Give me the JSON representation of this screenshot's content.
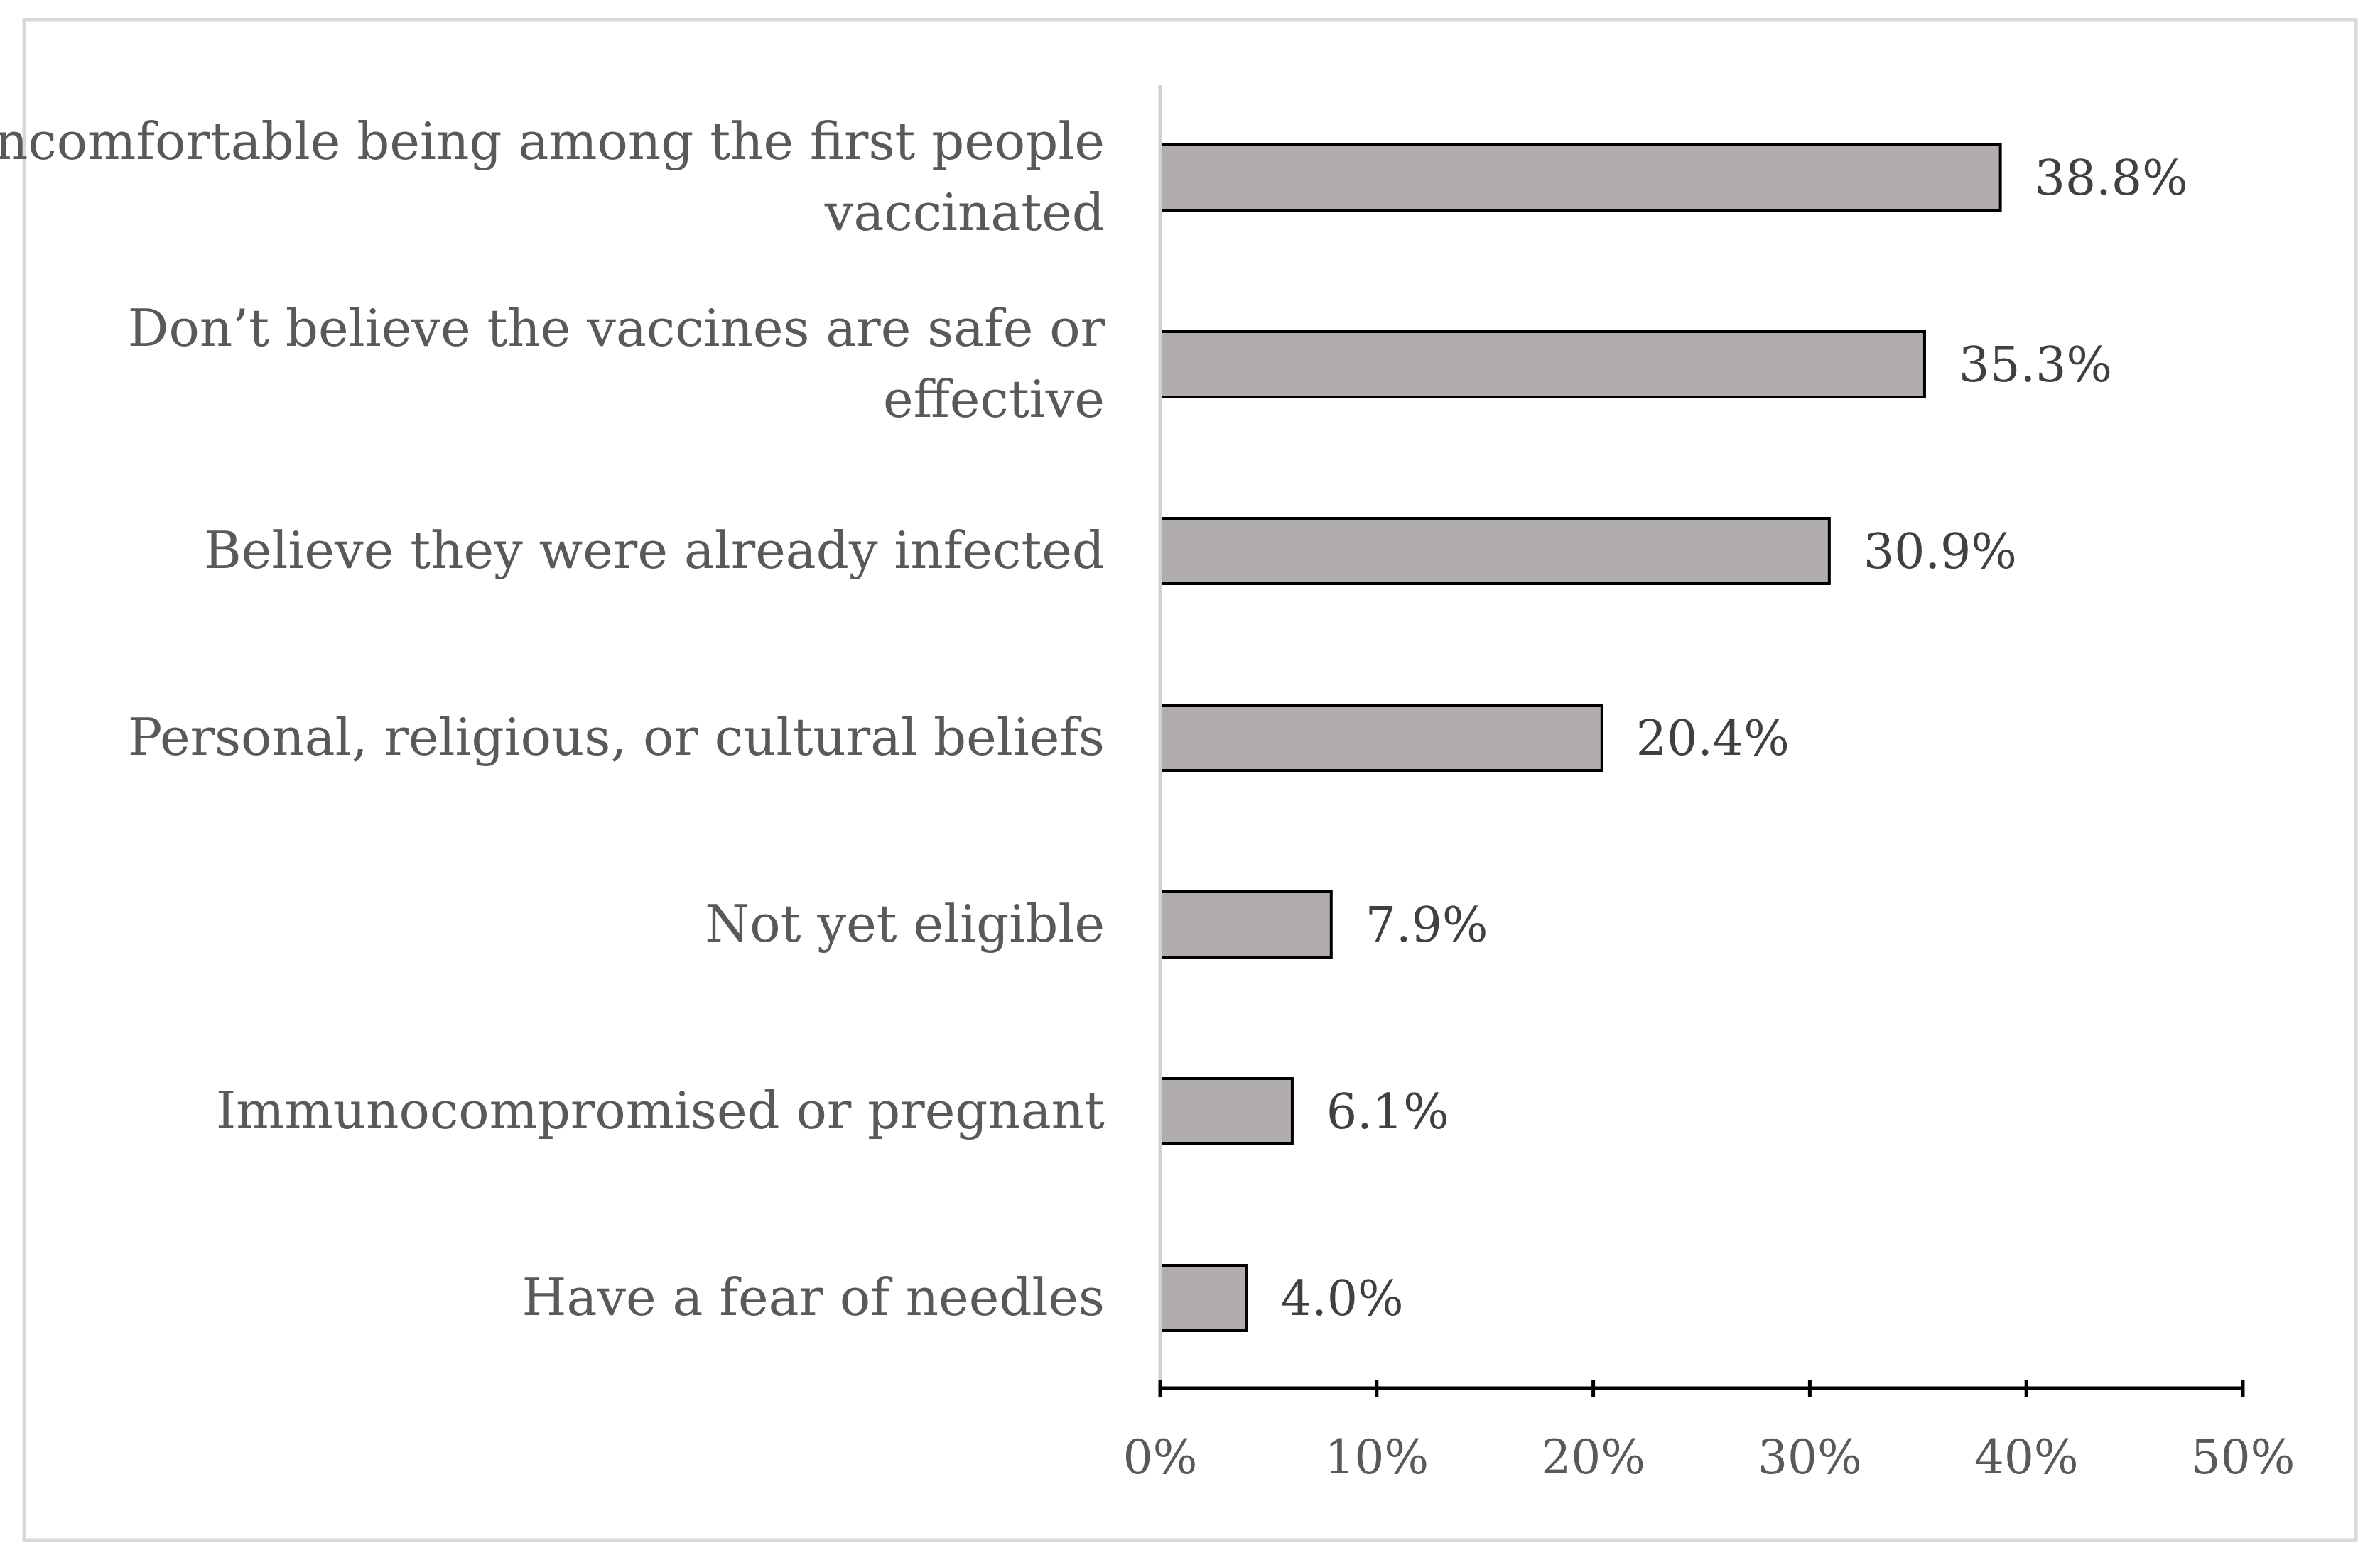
{
  "chart_data": {
    "type": "bar",
    "orientation": "horizontal",
    "categories": [
      "Uncomfortable being among the first people vaccinated",
      "Don’t believe the vaccines are safe or effective",
      "Believe they were already infected",
      "Personal, religious, or cultural beliefs",
      "Not yet eligible",
      "Immunocompromised or pregnant",
      "Have a fear of needles"
    ],
    "category_lines": [
      [
        "Uncomfortable being among the first people",
        "vaccinated"
      ],
      [
        "Don’t believe the vaccines are safe or",
        "effective"
      ],
      [
        "Believe they were already infected"
      ],
      [
        "Personal, religious, or cultural beliefs"
      ],
      [
        "Not yet eligible"
      ],
      [
        "Immunocompromised or pregnant"
      ],
      [
        "Have a fear of needles"
      ]
    ],
    "values": [
      38.8,
      35.3,
      30.9,
      20.4,
      7.9,
      6.1,
      4.0
    ],
    "data_labels": [
      "38.8%",
      "35.3%",
      "30.9%",
      "20.4%",
      "7.9%",
      "6.1%",
      "4.0%"
    ],
    "x_ticks": [
      0,
      10,
      20,
      30,
      40,
      50
    ],
    "x_tick_labels": [
      "0%",
      "10%",
      "20%",
      "30%",
      "40%",
      "50%"
    ],
    "xlim": [
      0,
      50
    ],
    "title": "",
    "xlabel": "",
    "ylabel": "",
    "grid": false,
    "legend": "none",
    "colors": {
      "bar_fill": "#b0adac",
      "bar_stroke": "#000000",
      "axis": "#000000",
      "category_axis": "#d0d0d0",
      "frame": "#d9d9d9"
    }
  }
}
